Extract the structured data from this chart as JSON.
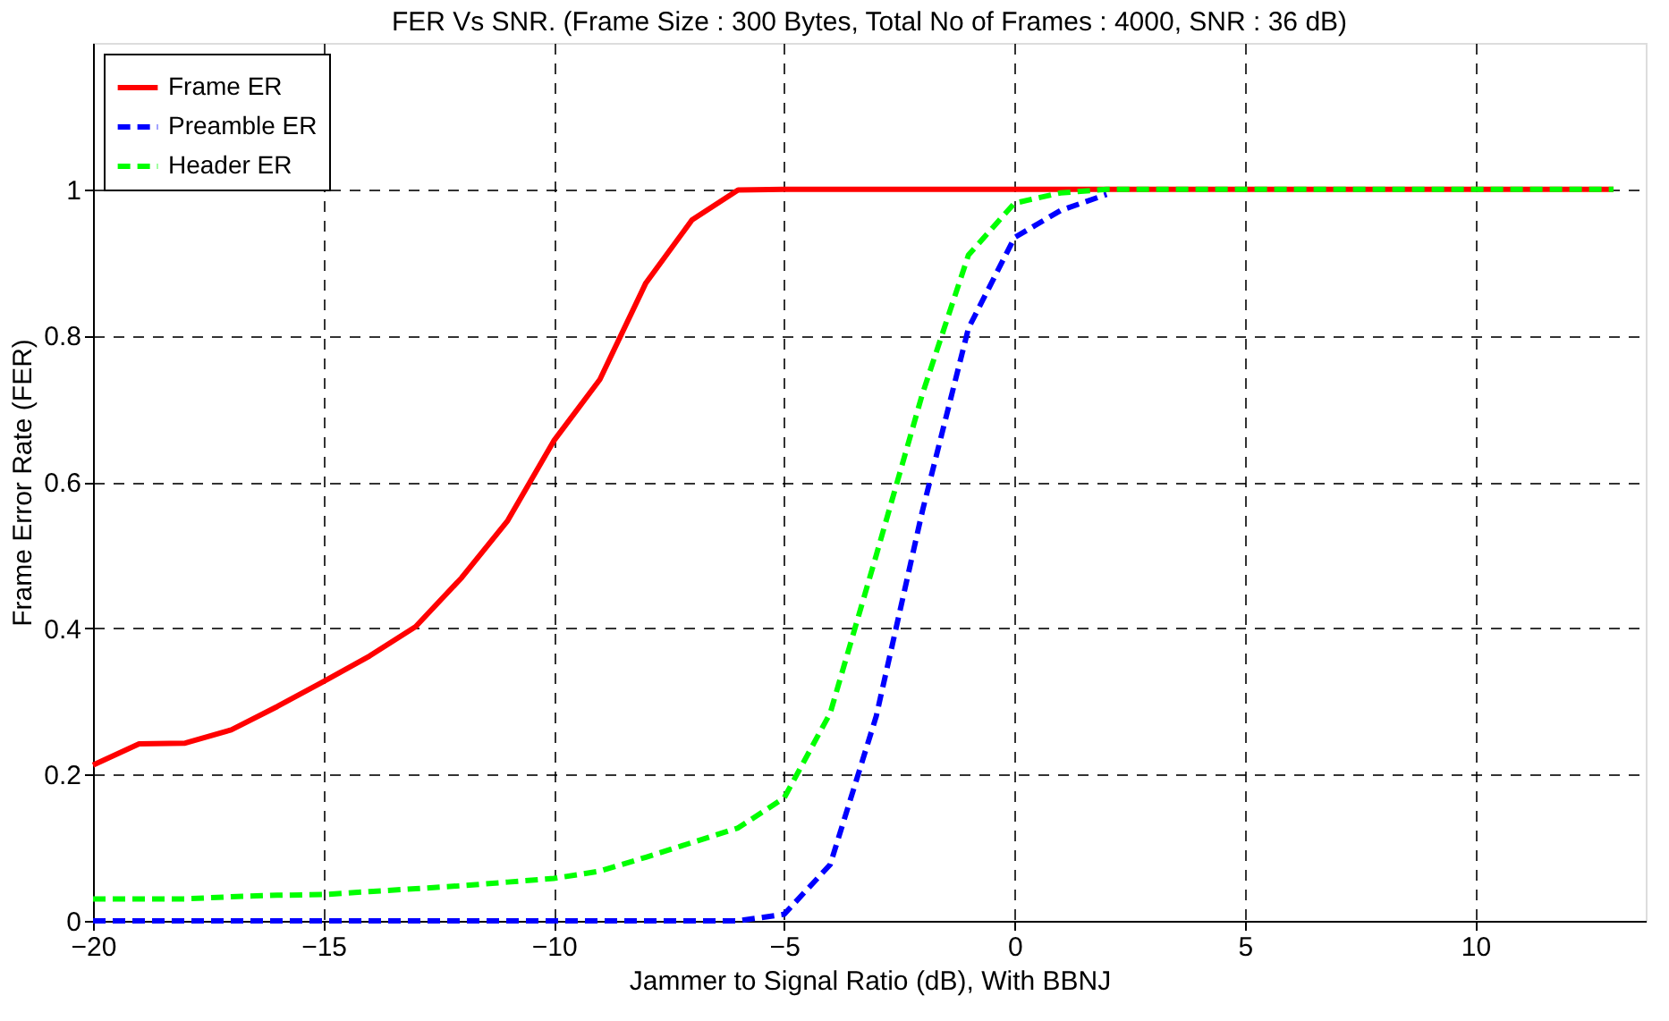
{
  "chart_data": {
    "type": "line",
    "title": "FER Vs  SNR. (Frame Size : 300 Bytes, Total No of Frames : 4000, SNR : 36 dB)",
    "xlabel": "Jammer to Signal Ratio (dB),  With BBNJ",
    "ylabel": "Frame Error Rate (FER)",
    "x": [
      -20,
      -19,
      -18,
      -17,
      -16,
      -15,
      -14,
      -13,
      -12,
      -11,
      -10,
      -9,
      -8,
      -7,
      -6,
      -5,
      -4,
      -3,
      -2,
      -1,
      0,
      1,
      2,
      3,
      4,
      5,
      6,
      7,
      8,
      9,
      10,
      11,
      12,
      13
    ],
    "series": [
      {
        "name": "Frame ER",
        "color": "#ff0000",
        "line_style": "solid",
        "values": [
          0.213,
          0.242,
          0.243,
          0.261,
          0.293,
          0.327,
          0.362,
          0.402,
          0.469,
          0.547,
          0.656,
          0.74,
          0.872,
          0.958,
          0.999,
          1,
          1,
          1,
          1,
          1,
          1,
          1,
          1,
          1,
          1,
          1,
          1,
          1,
          1,
          1,
          1,
          1,
          1,
          1
        ]
      },
      {
        "name": "Preamble ER",
        "color": "#0000ff",
        "line_style": "dashed",
        "values": [
          0,
          0,
          0,
          0,
          0,
          0,
          0,
          0,
          0,
          0,
          0,
          0,
          0,
          0,
          0,
          0.009,
          0.077,
          0.28,
          0.56,
          0.81,
          0.934,
          0.971,
          0.993,
          null,
          null,
          null,
          null,
          null,
          null,
          null,
          null,
          null,
          null,
          null
        ]
      },
      {
        "name": "Header ER",
        "color": "#00ff00",
        "line_style": "dashed",
        "values": [
          0.03,
          0.03,
          0.03,
          0.033,
          0.035,
          0.036,
          0.04,
          0.044,
          0.048,
          0.053,
          0.058,
          0.068,
          0.087,
          0.107,
          0.127,
          0.168,
          0.284,
          0.5,
          0.72,
          0.91,
          0.981,
          0.995,
          1,
          1,
          1,
          1,
          1,
          1,
          1,
          1,
          1,
          1,
          1,
          1
        ]
      }
    ],
    "xlim": [
      -20,
      13.7
    ],
    "xticks": [
      -20,
      -15,
      -10,
      -5,
      0,
      5,
      10
    ],
    "ylim": [
      0,
      1.2
    ],
    "yticks": [
      0,
      0.2,
      0.4,
      0.6,
      0.8,
      1
    ],
    "grid": true,
    "legend": "top left",
    "marker": "none"
  }
}
